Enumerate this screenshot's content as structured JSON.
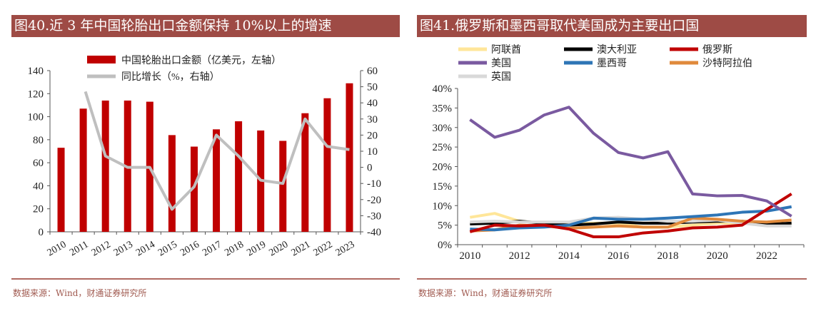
{
  "left": {
    "title": "图40.近 3 年中国轮胎出口金额保持 10%以上的增速",
    "source": "数据来源：Wind，财通证券研究所"
  },
  "right": {
    "title": "图41.俄罗斯和墨西哥取代美国成为主要出口国",
    "source": "数据来源：Wind，财通证券研究所"
  },
  "chart_data": [
    {
      "type": "bar",
      "title": "图40.近 3 年中国轮胎出口金额保持 10%以上的增速",
      "categories": [
        "2010",
        "2011",
        "2012",
        "2013",
        "2014",
        "2015",
        "2016",
        "2017",
        "2018",
        "2019",
        "2020",
        "2021",
        "2022",
        "2023"
      ],
      "series": [
        {
          "name": "中国轮胎出口金额（亿美元，左轴）",
          "type": "bar",
          "axis": "left",
          "color": "#c00000",
          "values": [
            73,
            107,
            114,
            114,
            113,
            84,
            74,
            89,
            96,
            88,
            79,
            103,
            116,
            129
          ]
        },
        {
          "name": "同比增长（%，右轴）",
          "type": "line",
          "axis": "right",
          "color": "#bfbfbf",
          "values": [
            null,
            47,
            7,
            0,
            0,
            -26,
            -12,
            20,
            7,
            -8,
            -10,
            30,
            13,
            11
          ]
        }
      ],
      "ylim_left": [
        0,
        140
      ],
      "yticks_left": [
        0,
        20,
        40,
        60,
        80,
        100,
        120,
        140
      ],
      "ylim_right": [
        -40,
        60
      ],
      "yticks_right": [
        -40,
        -30,
        -20,
        -10,
        0,
        10,
        20,
        30,
        40,
        50,
        60
      ],
      "legend": "top"
    },
    {
      "type": "line",
      "title": "图41.俄罗斯和墨西哥取代美国成为主要出口国",
      "x": [
        2010,
        2011,
        2012,
        2013,
        2014,
        2015,
        2016,
        2017,
        2018,
        2019,
        2020,
        2021,
        2022,
        2023
      ],
      "xticks": [
        "2010",
        "2012",
        "2014",
        "2016",
        "2018",
        "2020",
        "2022"
      ],
      "ylim": [
        0,
        40
      ],
      "yticks": [
        "0%",
        "5%",
        "10%",
        "15%",
        "20%",
        "25%",
        "30%",
        "35%",
        "40%"
      ],
      "series": [
        {
          "name": "阿联酋",
          "color": "#ffe699",
          "values": [
            7,
            8,
            6,
            5.5,
            5.5,
            5.5,
            5.5,
            4.5,
            4.5,
            5,
            5.5,
            5.5,
            5,
            5.5
          ]
        },
        {
          "name": "澳大利亚",
          "color": "#000000",
          "values": [
            5.3,
            5.5,
            6,
            5.5,
            5,
            5.3,
            5.8,
            5.5,
            5.5,
            5.8,
            6,
            6,
            5.2,
            5.5
          ]
        },
        {
          "name": "俄罗斯",
          "color": "#c00000",
          "values": [
            3.3,
            5,
            4.8,
            5,
            4,
            2,
            2,
            3,
            3.5,
            4.3,
            4.5,
            5,
            9,
            13
          ]
        },
        {
          "name": "美国",
          "color": "#7a5aa0",
          "values": [
            32,
            27.5,
            29.3,
            33.2,
            35.2,
            28.5,
            23.6,
            22.2,
            23.8,
            13,
            12.5,
            12.6,
            11.2,
            7.3
          ]
        },
        {
          "name": "墨西哥",
          "color": "#2e75b6",
          "values": [
            4,
            3.8,
            4.3,
            4.5,
            5,
            6.8,
            6.5,
            6.5,
            6.8,
            7.2,
            7.6,
            8.3,
            8.6,
            9.7
          ]
        },
        {
          "name": "沙特阿拉伯",
          "color": "#e08a3c",
          "values": [
            3.5,
            3.8,
            5,
            4.8,
            4.2,
            4.5,
            4.8,
            4.5,
            4.5,
            6.8,
            6.5,
            6,
            5.8,
            6.3
          ]
        },
        {
          "name": "英国",
          "color": "#d9d9d9",
          "values": [
            5.8,
            6,
            5.8,
            5.8,
            5.8,
            6.8,
            7,
            6.5,
            6,
            6,
            6.3,
            5.5,
            4.8,
            4.8
          ]
        }
      ],
      "legend": "top"
    }
  ]
}
